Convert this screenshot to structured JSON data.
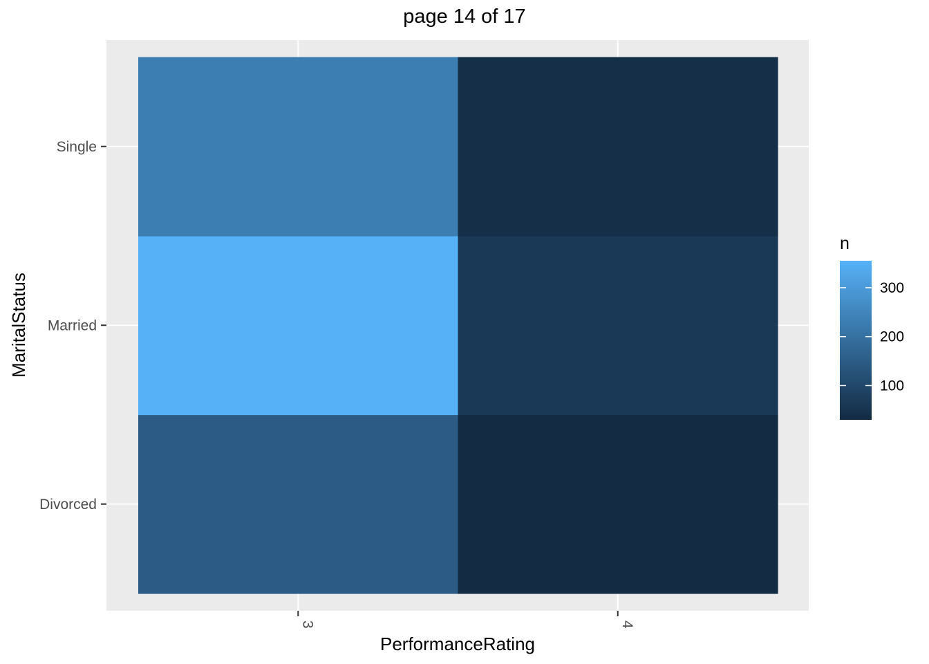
{
  "chart_data": {
    "type": "heatmap",
    "title": "page 14 of 17",
    "xlabel": "PerformanceRating",
    "ylabel": "MaritalStatus",
    "x_categories": [
      "3",
      "4"
    ],
    "y_categories": [
      "Divorced",
      "Married",
      "Single"
    ],
    "cells": [
      {
        "x": "3",
        "y": "Divorced",
        "value": 150
      },
      {
        "x": "3",
        "y": "Married",
        "value": 355
      },
      {
        "x": "3",
        "y": "Single",
        "value": 230
      },
      {
        "x": "4",
        "y": "Divorced",
        "value": 30
      },
      {
        "x": "4",
        "y": "Married",
        "value": 65
      },
      {
        "x": "4",
        "y": "Single",
        "value": 40
      }
    ],
    "legend": {
      "title": "n",
      "ticks": [
        100,
        200,
        300
      ],
      "range": [
        30,
        355
      ],
      "low_color": "#132B43",
      "high_color": "#56B1F7",
      "placement": "right"
    },
    "grid": true,
    "panel_background": "#EBEBEB"
  }
}
